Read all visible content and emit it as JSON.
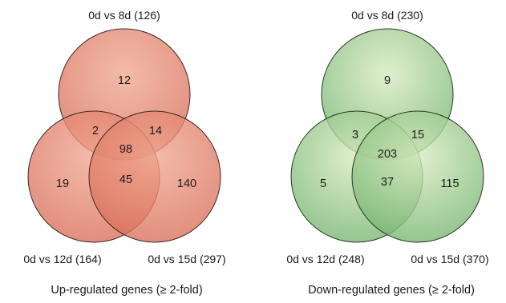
{
  "colors": {
    "up_fill_light": "#f0a890",
    "up_fill_dark": "#d86a55",
    "up_stroke": "#3a2a28",
    "down_fill_light": "#d8eac0",
    "down_fill_dark": "#6fb26a",
    "down_stroke": "#2a3a28",
    "text": "#1a1a1a"
  },
  "up": {
    "caption": "Up-regulated genes (≥ 2-fold)",
    "sets": {
      "top": "0d vs 8d (126)",
      "left": "0d vs 12d (164)",
      "right": "0d vs 15d (297)"
    },
    "regions": {
      "top_only": "12",
      "left_only": "19",
      "right_only": "140",
      "top_left": "2",
      "top_right": "14",
      "left_right": "45",
      "all": "98"
    }
  },
  "down": {
    "caption": "Down-regulated genes (≥ 2-fold)",
    "sets": {
      "top": "0d vs 8d (230)",
      "left": "0d vs 12d (248)",
      "right": "0d vs 15d (370)"
    },
    "regions": {
      "top_only": "9",
      "left_only": "5",
      "right_only": "115",
      "top_left": "3",
      "top_right": "15",
      "left_right": "37",
      "all": "203"
    }
  }
}
